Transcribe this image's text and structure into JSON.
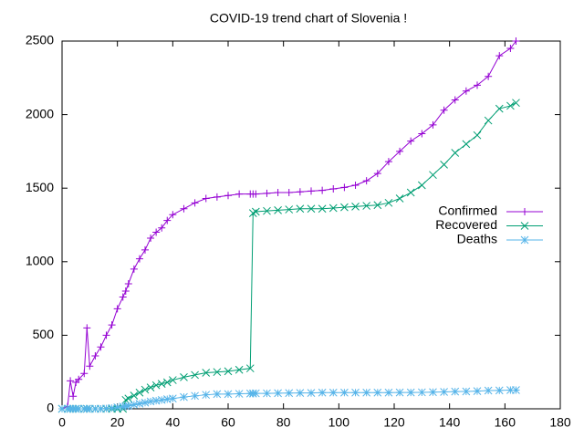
{
  "chart_data": {
    "type": "line",
    "title": "COVID-19 trend chart of Slovenia !",
    "x": [
      0,
      2,
      3,
      4,
      5,
      6,
      8,
      9,
      10,
      12,
      14,
      16,
      18,
      20,
      22,
      23,
      24,
      26,
      28,
      30,
      32,
      34,
      36,
      38,
      40,
      44,
      48,
      52,
      56,
      60,
      64,
      68,
      69,
      70,
      74,
      78,
      82,
      86,
      90,
      94,
      98,
      102,
      106,
      110,
      114,
      118,
      122,
      126,
      130,
      134,
      138,
      142,
      146,
      150,
      154,
      158,
      162,
      164
    ],
    "series": [
      {
        "name": "Confirmed",
        "color": "#9400d3",
        "marker": "plus",
        "values": [
          0,
          15,
          190,
          85,
          180,
          200,
          240,
          550,
          290,
          360,
          420,
          500,
          570,
          680,
          760,
          800,
          850,
          950,
          1020,
          1080,
          1160,
          1200,
          1230,
          1280,
          1320,
          1360,
          1400,
          1430,
          1440,
          1450,
          1460,
          1460,
          1460,
          1460,
          1465,
          1470,
          1470,
          1475,
          1480,
          1485,
          1495,
          1505,
          1520,
          1550,
          1600,
          1680,
          1750,
          1820,
          1870,
          1930,
          2030,
          2100,
          2160,
          2200,
          2260,
          2400,
          2450,
          2500
        ]
      },
      {
        "name": "Recovered",
        "color": "#009e73",
        "marker": "cross",
        "values": [
          0,
          0,
          0,
          0,
          0,
          0,
          0,
          0,
          0,
          0,
          0,
          0,
          0,
          0,
          0,
          60,
          70,
          90,
          110,
          130,
          145,
          160,
          170,
          180,
          195,
          215,
          230,
          245,
          250,
          255,
          265,
          275,
          1330,
          1340,
          1345,
          1350,
          1355,
          1360,
          1360,
          1360,
          1365,
          1370,
          1375,
          1380,
          1385,
          1400,
          1430,
          1470,
          1520,
          1590,
          1660,
          1740,
          1800,
          1860,
          1960,
          2040,
          2060,
          2080
        ]
      },
      {
        "name": "Deaths",
        "color": "#56b4e9",
        "marker": "star",
        "values": [
          0,
          0,
          0,
          0,
          0,
          0,
          0,
          0,
          0,
          0,
          0,
          2,
          5,
          10,
          15,
          18,
          20,
          28,
          35,
          42,
          50,
          55,
          60,
          65,
          70,
          80,
          88,
          95,
          100,
          100,
          102,
          104,
          104,
          105,
          105,
          106,
          107,
          108,
          108,
          110,
          110,
          110,
          110,
          110,
          110,
          110,
          111,
          111,
          112,
          113,
          115,
          117,
          118,
          120,
          124,
          125,
          127,
          127
        ]
      }
    ],
    "xlim": [
      0,
      180
    ],
    "xticks": [
      0,
      20,
      40,
      60,
      80,
      100,
      120,
      140,
      160,
      180
    ],
    "ylim": [
      0,
      2500
    ],
    "yticks": [
      0,
      500,
      1000,
      1500,
      2000,
      2500
    ],
    "legend": "right"
  }
}
